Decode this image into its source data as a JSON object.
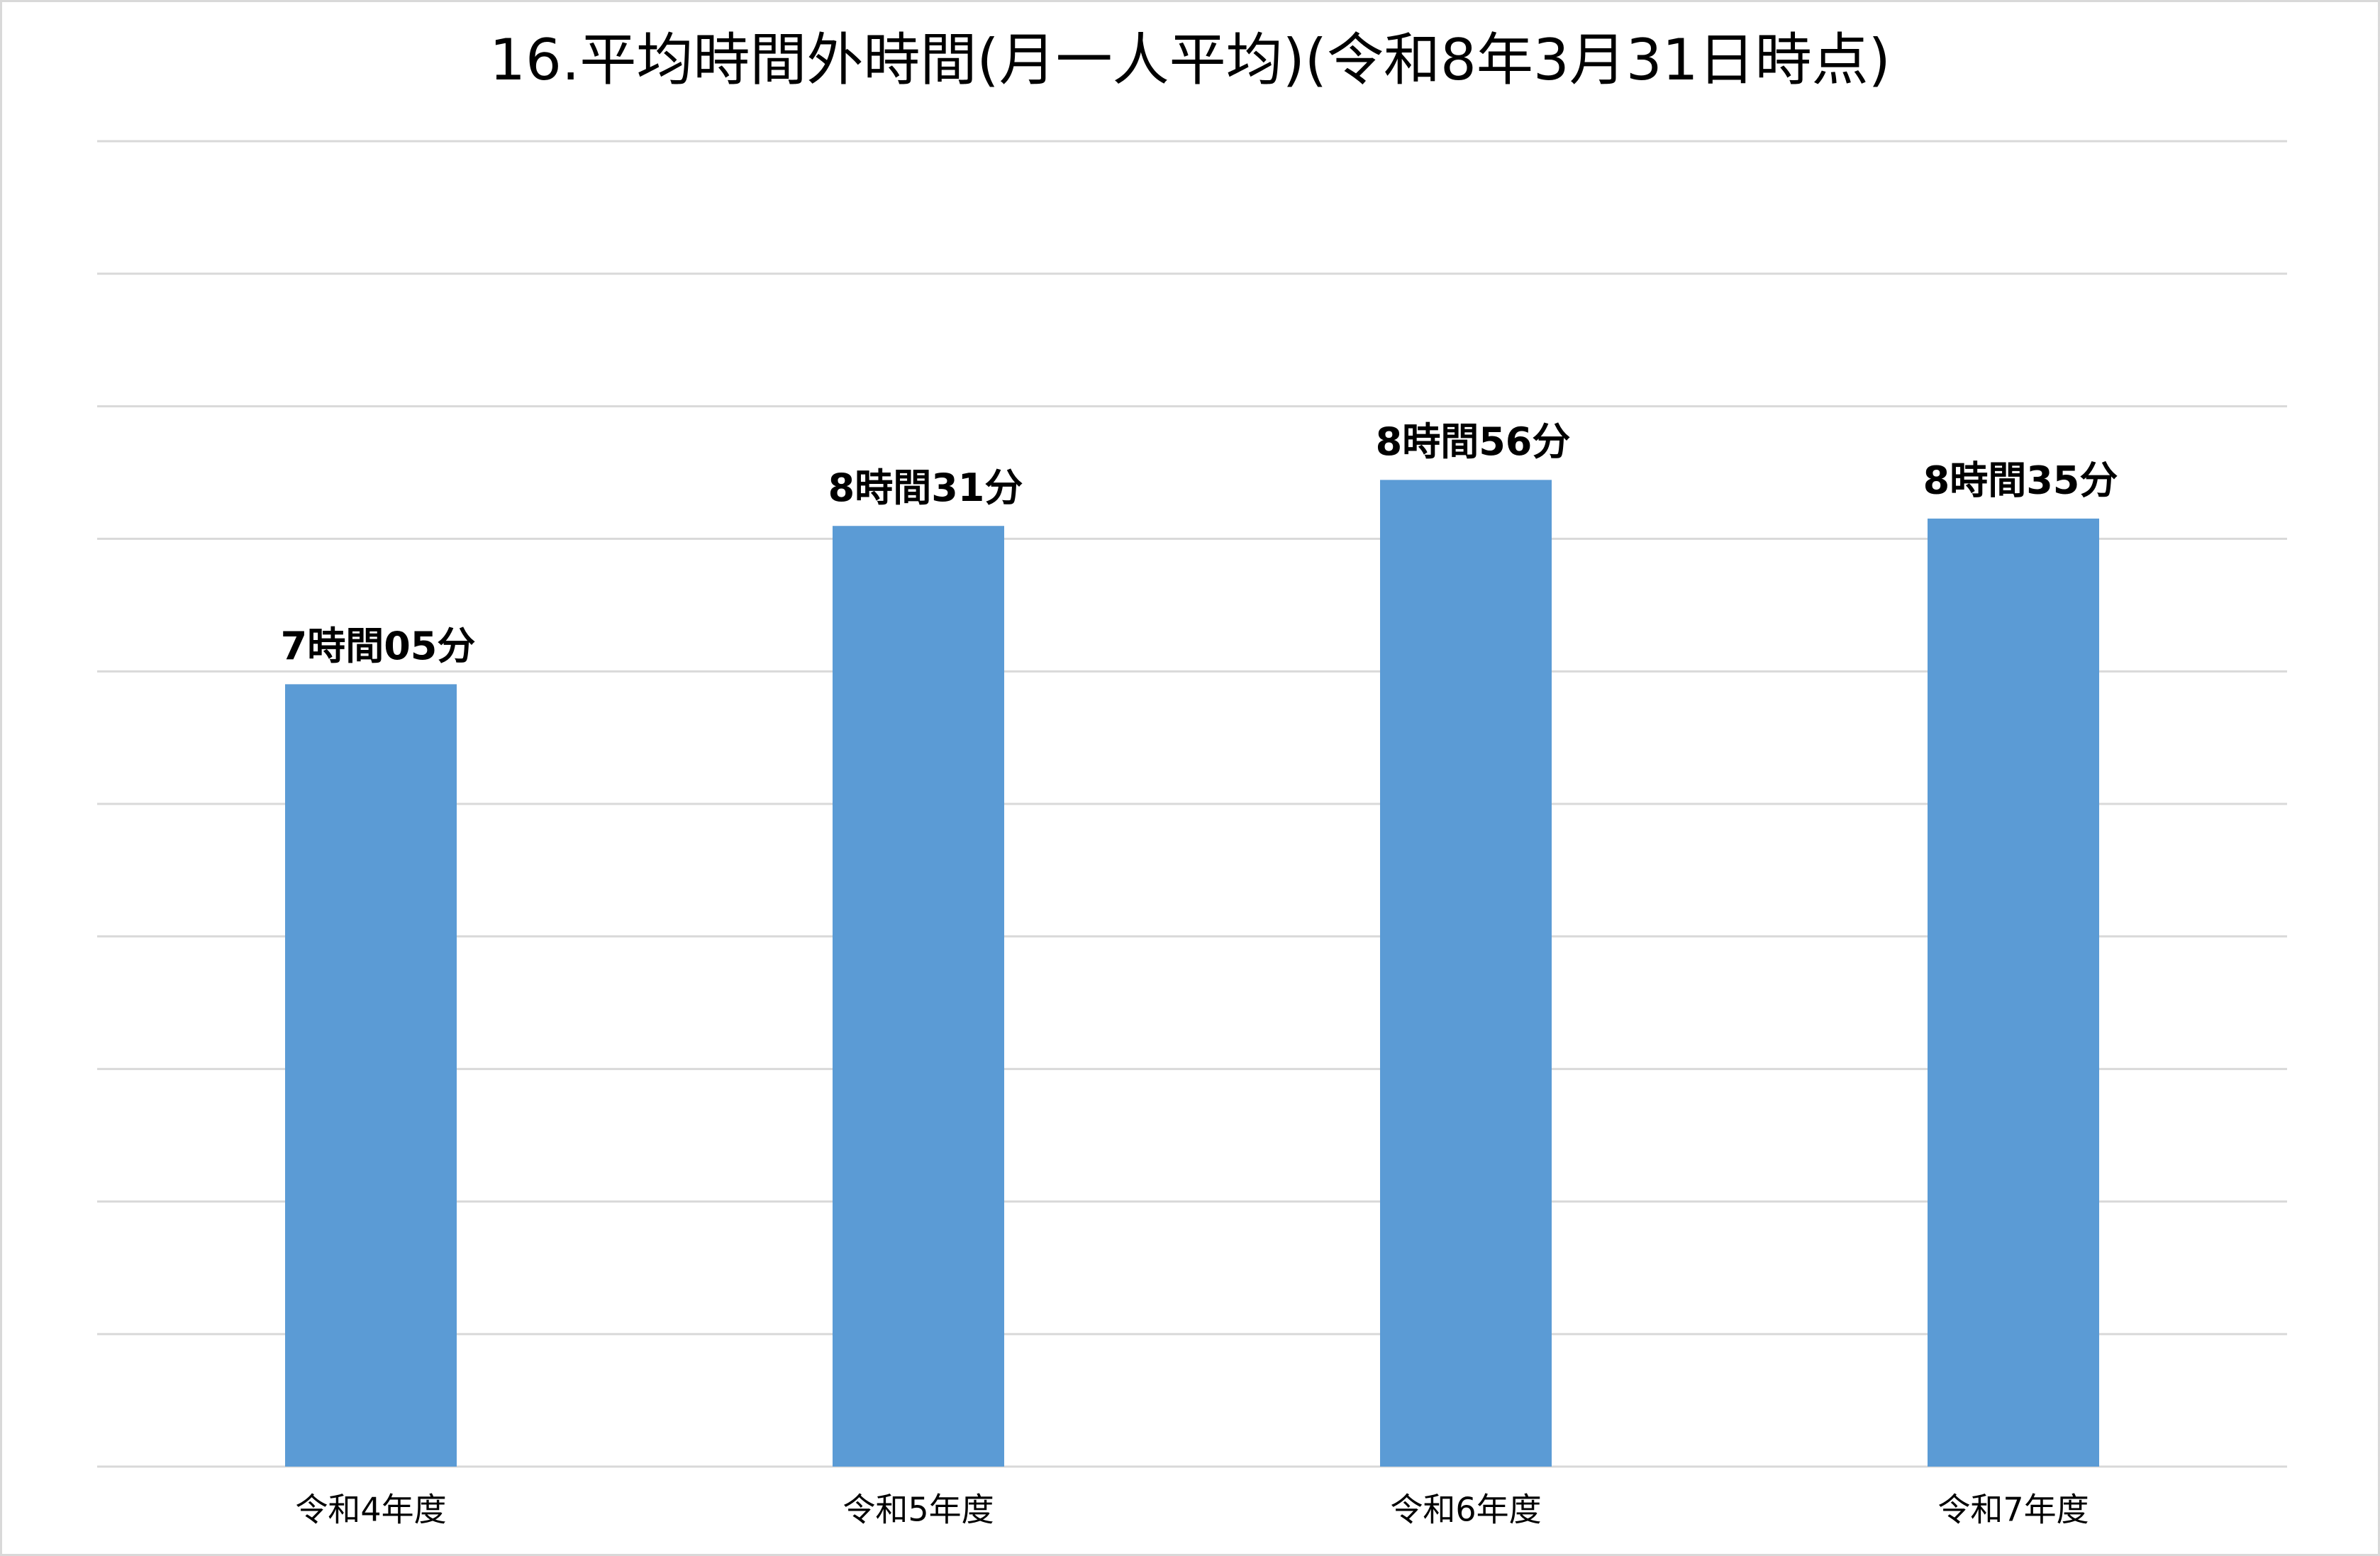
{
  "chart_data": {
    "type": "bar",
    "title": "16.平均時間外時間(月一人平均)(令和8年3月31日時点)",
    "categories": [
      "令和4年度",
      "令和5年度",
      "令和6年度",
      "令和7年度"
    ],
    "values": [
      425,
      511,
      536,
      515
    ],
    "value_labels": [
      "7時間05分",
      "8時間31分",
      "8時間56分",
      "8時間35分"
    ],
    "color": "#5b9bd5",
    "ylim": [
      0,
      720
    ],
    "yticks": [
      0,
      72,
      144,
      216,
      288,
      360,
      432,
      504,
      576,
      648,
      720
    ],
    "grid": true
  }
}
